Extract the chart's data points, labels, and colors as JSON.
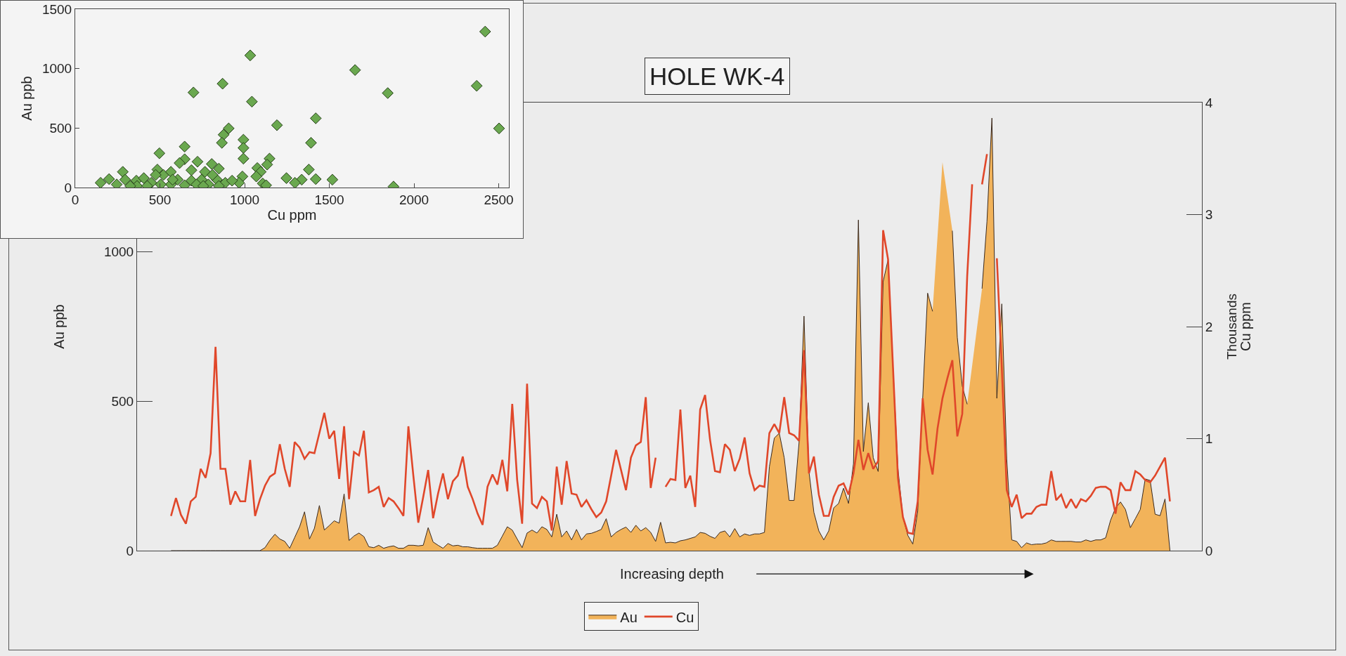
{
  "chart_data": [
    {
      "type": "area",
      "title": "HOLE WK-4",
      "xlabel": "Increasing depth",
      "ylabel": "Au ppb",
      "y2label": "Cu ppm",
      "annotations": [
        "Thousands"
      ],
      "categories": [
        null,
        null,
        null,
        null,
        null,
        null,
        null,
        null,
        null,
        null,
        null,
        null,
        null,
        null,
        null,
        null,
        null,
        null,
        null,
        null,
        null,
        null,
        null,
        null,
        null,
        null,
        null,
        null,
        null,
        null,
        null,
        null,
        null,
        null,
        null,
        null,
        null,
        null,
        null,
        null,
        null,
        null,
        null,
        null,
        null,
        null,
        null,
        null,
        null,
        null,
        null,
        null,
        null,
        null,
        null,
        null,
        null,
        null,
        null,
        null,
        null,
        null,
        null,
        null,
        null,
        null,
        null,
        null,
        null,
        null,
        null,
        null,
        null,
        null,
        null,
        null,
        null,
        null,
        null,
        null,
        null,
        null,
        null,
        null,
        null,
        null,
        null,
        null,
        null,
        null,
        null,
        null,
        null,
        null,
        null,
        null,
        null,
        null,
        null,
        null,
        null,
        null,
        null,
        null,
        null,
        null,
        null,
        null,
        null,
        null,
        null,
        null,
        null,
        null,
        null,
        null,
        null,
        null,
        null,
        null,
        null,
        null,
        null,
        null,
        null,
        null,
        null,
        null,
        null,
        null,
        null,
        null,
        null,
        null,
        null,
        null,
        null,
        null,
        null,
        null,
        null,
        null,
        null,
        null,
        null,
        null,
        null,
        null,
        null,
        null,
        null,
        null,
        null,
        null,
        null,
        null,
        null,
        null,
        null,
        null,
        null,
        null,
        null,
        null,
        null,
        null,
        null,
        null,
        null,
        null,
        null,
        null,
        null,
        null,
        null,
        null,
        null,
        null,
        null,
        null,
        null,
        null,
        null,
        null,
        null,
        null,
        null,
        null,
        null,
        null,
        null,
        null,
        null,
        null,
        null,
        null,
        null,
        null,
        null,
        null,
        null,
        null,
        null
      ],
      "series": [
        {
          "name": "Au",
          "type": "area",
          "color": "#f2b35a",
          "values": [
            0,
            0,
            0,
            0,
            0,
            0,
            0,
            0,
            0,
            0,
            0,
            0,
            0,
            0,
            0,
            0,
            0,
            0,
            0,
            10,
            35,
            55,
            39,
            31,
            8,
            44,
            80,
            130,
            39,
            75,
            151,
            69,
            84,
            100,
            92,
            190,
            34,
            49,
            59,
            47,
            13,
            10,
            18,
            8,
            13,
            16,
            8,
            8,
            18,
            18,
            16,
            18,
            77,
            29,
            18,
            8,
            24,
            16,
            18,
            13,
            13,
            10,
            8,
            8,
            8,
            8,
            18,
            49,
            80,
            69,
            39,
            10,
            59,
            69,
            59,
            80,
            71,
            46,
            122,
            46,
            66,
            36,
            71,
            36,
            56,
            58,
            64,
            71,
            107,
            46,
            61,
            71,
            79,
            61,
            85,
            66,
            77,
            61,
            31,
            95,
            26,
            28,
            26,
            33,
            36,
            41,
            46,
            61,
            58,
            48,
            41,
            61,
            66,
            46,
            74,
            46,
            56,
            51,
            56,
            56,
            61,
            281,
            377,
            393,
            311,
            168,
            168,
            362,
            785,
            265,
            128,
            66,
            36,
            66,
            143,
            158,
            209,
            158,
            291,
            1107,
            332,
            495,
            311,
            265,
            900,
            974,
            612,
            275,
            112,
            51,
            22,
            133,
            510,
            862,
            801,
            null,
            1300,
            null,
            1071,
            714,
            551,
            490,
            null,
            null,
            877,
            1102,
            1448,
            510,
            826,
            306,
            36,
            31,
            10,
            26,
            20,
            22,
            22,
            26,
            36,
            31,
            31,
            31,
            31,
            29,
            29,
            36,
            31,
            36,
            36,
            43,
            102,
            143,
            163,
            138,
            77,
            107,
            138,
            240,
            235,
            122,
            117,
            173,
            0
          ]
        },
        {
          "name": "Cu",
          "type": "line",
          "axis": "y2",
          "color": "#e0472a",
          "values": [
            0.31,
            0.47,
            0.32,
            0.24,
            0.44,
            0.48,
            0.73,
            0.65,
            0.87,
            1.82,
            0.73,
            0.73,
            0.41,
            0.53,
            0.44,
            0.44,
            0.81,
            0.31,
            0.46,
            0.58,
            0.66,
            0.69,
            0.95,
            0.73,
            0.57,
            0.97,
            0.92,
            0.82,
            0.88,
            0.87,
            1.05,
            1.23,
            1.0,
            1.07,
            0.64,
            1.11,
            0.46,
            0.88,
            0.85,
            1.07,
            0.52,
            0.54,
            0.57,
            0.39,
            0.47,
            0.44,
            0.38,
            0.31,
            1.11,
            0.67,
            0.25,
            0.48,
            0.72,
            0.29,
            0.51,
            0.69,
            0.46,
            0.62,
            0.67,
            0.84,
            0.57,
            0.46,
            0.33,
            0.23,
            0.57,
            0.68,
            0.59,
            0.81,
            0.53,
            1.31,
            0.63,
            0.24,
            1.49,
            0.42,
            0.38,
            0.48,
            0.44,
            0.18,
            0.75,
            0.41,
            0.8,
            0.51,
            0.5,
            0.39,
            0.45,
            0.37,
            0.3,
            0.34,
            0.44,
            0.67,
            0.9,
            0.72,
            0.54,
            0.83,
            0.94,
            0.97,
            1.37,
            0.56,
            0.83,
            null,
            0.57,
            0.64,
            0.63,
            1.26,
            0.56,
            0.67,
            0.39,
            1.26,
            1.39,
            0.99,
            0.71,
            0.7,
            0.95,
            0.9,
            0.71,
            0.82,
            1.01,
            0.69,
            0.54,
            0.58,
            0.57,
            1.05,
            1.13,
            1.05,
            1.37,
            1.05,
            1.03,
            0.98,
            1.79,
            0.69,
            0.84,
            0.5,
            0.31,
            0.31,
            0.48,
            0.58,
            0.6,
            0.5,
            0.69,
            0.99,
            0.72,
            0.87,
            0.73,
            0.8,
            2.86,
            2.6,
            1.63,
            0.65,
            0.3,
            0.16,
            0.15,
            0.44,
            1.36,
            0.9,
            0.68,
            1.09,
            1.36,
            1.54,
            1.7,
            1.02,
            1.22,
            2.45,
            3.27,
            null,
            3.27,
            3.54,
            null,
            2.61,
            1.63,
            0.54,
            0.39,
            0.5,
            0.29,
            0.33,
            0.33,
            0.39,
            0.41,
            0.41,
            0.71,
            0.45,
            0.5,
            0.38,
            0.46,
            0.38,
            0.46,
            0.44,
            0.49,
            0.56,
            0.57,
            0.57,
            0.54,
            0.33,
            0.61,
            0.54,
            0.54,
            0.71,
            0.68,
            0.63,
            0.61,
            0.67,
            0.75,
            0.83,
            0.44
          ]
        }
      ],
      "ylim": [
        0,
        1500
      ],
      "yticks": [
        0,
        500,
        1000
      ],
      "y2lim": [
        0,
        4
      ],
      "y2ticks": [
        0,
        1,
        2,
        3,
        4
      ],
      "legend": "bottom"
    },
    {
      "type": "scatter",
      "xlabel": "Cu ppm",
      "ylabel": "Au ppb",
      "marker": "diamond",
      "color": "#6aa84f",
      "x": [
        2420,
        1033,
        1652,
        870,
        698,
        2370,
        1845,
        1043,
        1420,
        2502,
        1191,
        906,
        876,
        866,
        993,
        993,
        993,
        1392,
        646,
        497,
        646,
        616,
        722,
        1147,
        1133,
        806,
        848,
        1379,
        1075,
        1095,
        1069,
        1247,
        1337,
        1297,
        1420,
        1518,
        1879,
        1107,
        987,
        967,
        281,
        200,
        150,
        295,
        245,
        361,
        485,
        521,
        565,
        405,
        449,
        605,
        686,
        746,
        766,
        786,
        836,
        886,
        926,
        686,
        716,
        565,
        505,
        365,
        325,
        646,
        756,
        810,
        575,
        475,
        425,
        848,
        1127
      ],
      "values": [
        1311,
        1111,
        988,
        873,
        799,
        855,
        794,
        722,
        582,
        497,
        524,
        497,
        444,
        376,
        402,
        333,
        243,
        376,
        344,
        288,
        238,
        206,
        217,
        243,
        193,
        198,
        159,
        151,
        164,
        132,
        93,
        79,
        66,
        40,
        71,
        66,
        8,
        34,
        93,
        40,
        132,
        71,
        40,
        66,
        26,
        58,
        151,
        106,
        132,
        79,
        40,
        66,
        58,
        66,
        132,
        26,
        66,
        40,
        58,
        146,
        26,
        26,
        26,
        13,
        13,
        19,
        13,
        106,
        66,
        106,
        13,
        13,
        19
      ],
      "xlim": [
        0,
        2560
      ],
      "xticks": [
        0,
        500,
        1000,
        1500,
        2000,
        2500
      ],
      "ylim": [
        0,
        1500
      ],
      "yticks": [
        0,
        500,
        1000,
        1500
      ]
    }
  ]
}
